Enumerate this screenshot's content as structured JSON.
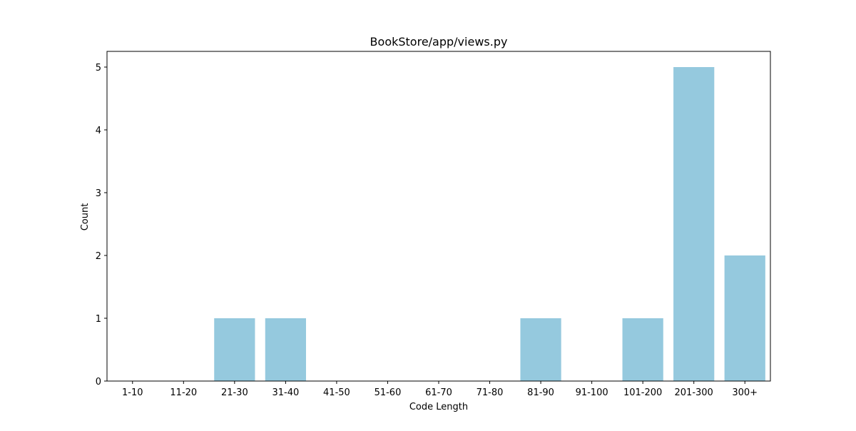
{
  "chart_data": {
    "type": "bar",
    "title": "BookStore/app/views.py",
    "xlabel": "Code Length",
    "ylabel": "Count",
    "categories": [
      "1-10",
      "11-20",
      "21-30",
      "31-40",
      "41-50",
      "51-60",
      "61-70",
      "71-80",
      "81-90",
      "91-100",
      "101-200",
      "201-300",
      "300+"
    ],
    "values": [
      0,
      0,
      1,
      1,
      0,
      0,
      0,
      0,
      1,
      0,
      1,
      5,
      2
    ],
    "ylim": [
      0,
      5.25
    ],
    "yticks": [
      0,
      1,
      2,
      3,
      4,
      5
    ],
    "bar_color": "#95c9de",
    "grid": false,
    "legend": "none"
  }
}
